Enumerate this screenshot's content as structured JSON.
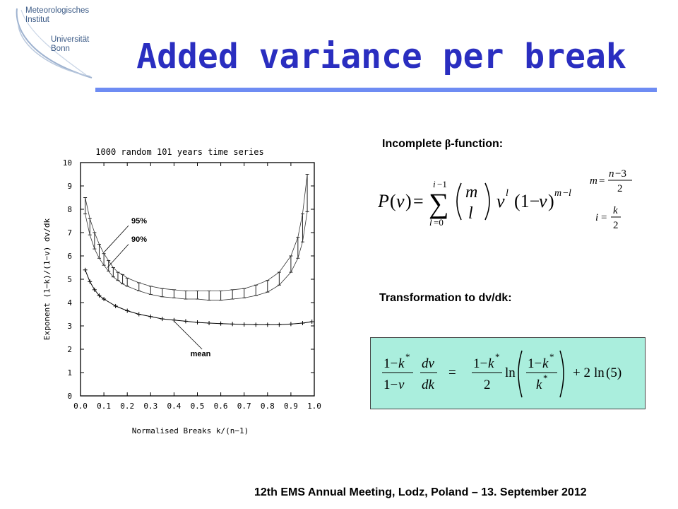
{
  "logo": {
    "line1": "Meteorologisches",
    "line2": "Institut",
    "line3": "Universität",
    "line4": "Bonn"
  },
  "title": "Added variance per break",
  "incomplete_label_prefix": "Incomplete ",
  "beta_symbol": "β",
  "incomplete_label_suffix": "-function:",
  "transformation_label": "Transformation to dv/dk:",
  "footer": "12th EMS Annual Meeting, Lodz, Poland  –  13. September 2012",
  "plot_annotations": {
    "p95": "95%",
    "p90": "90%",
    "mean": "mean"
  },
  "colors": {
    "title": "#2a2ec0",
    "rule": "#6e8cf3",
    "eq_box": "#aaeedd"
  },
  "chart_data": {
    "type": "line",
    "title": "1000 random 101 years time series",
    "xlabel": "Normalised Breaks k/(n−1)",
    "ylabel": "Exponent (1−k)/(1−v) dv/dk",
    "xlim": [
      0.0,
      1.0
    ],
    "ylim": [
      0,
      10
    ],
    "x_ticks": [
      "0.0",
      "0.1",
      "0.2",
      "0.3",
      "0.4",
      "0.5",
      "0.6",
      "0.7",
      "0.8",
      "0.9",
      "1.0"
    ],
    "y_ticks": [
      "0",
      "1",
      "2",
      "3",
      "4",
      "5",
      "6",
      "7",
      "8",
      "9",
      "10"
    ],
    "series": [
      {
        "name": "95%",
        "x": [
          0.02,
          0.04,
          0.06,
          0.08,
          0.1,
          0.12,
          0.14,
          0.16,
          0.18,
          0.2,
          0.25,
          0.3,
          0.35,
          0.4,
          0.45,
          0.5,
          0.55,
          0.6,
          0.65,
          0.7,
          0.75,
          0.8,
          0.85,
          0.9,
          0.93,
          0.95,
          0.97
        ],
        "values": [
          8.5,
          7.6,
          7.0,
          6.5,
          6.1,
          5.8,
          5.5,
          5.3,
          5.2,
          5.05,
          4.85,
          4.7,
          4.6,
          4.55,
          4.5,
          4.5,
          4.5,
          4.5,
          4.55,
          4.6,
          4.75,
          4.95,
          5.3,
          6.0,
          6.8,
          7.8,
          9.5
        ]
      },
      {
        "name": "90%",
        "x": [
          0.02,
          0.04,
          0.06,
          0.08,
          0.1,
          0.12,
          0.14,
          0.16,
          0.18,
          0.2,
          0.25,
          0.3,
          0.35,
          0.4,
          0.45,
          0.5,
          0.55,
          0.6,
          0.65,
          0.7,
          0.75,
          0.8,
          0.85,
          0.9,
          0.93,
          0.95,
          0.97
        ],
        "values": [
          7.8,
          6.9,
          6.3,
          5.9,
          5.6,
          5.35,
          5.1,
          4.95,
          4.8,
          4.7,
          4.5,
          4.35,
          4.25,
          4.2,
          4.15,
          4.15,
          4.1,
          4.1,
          4.15,
          4.2,
          4.3,
          4.45,
          4.75,
          5.3,
          5.9,
          6.6,
          7.9
        ]
      },
      {
        "name": "mean",
        "x": [
          0.02,
          0.04,
          0.06,
          0.08,
          0.1,
          0.15,
          0.2,
          0.25,
          0.3,
          0.35,
          0.4,
          0.45,
          0.5,
          0.55,
          0.6,
          0.65,
          0.7,
          0.75,
          0.8,
          0.85,
          0.9,
          0.95,
          0.99
        ],
        "values": [
          5.4,
          4.9,
          4.55,
          4.3,
          4.15,
          3.85,
          3.65,
          3.5,
          3.4,
          3.3,
          3.25,
          3.2,
          3.15,
          3.12,
          3.1,
          3.08,
          3.06,
          3.05,
          3.05,
          3.05,
          3.08,
          3.12,
          3.18
        ]
      }
    ]
  }
}
